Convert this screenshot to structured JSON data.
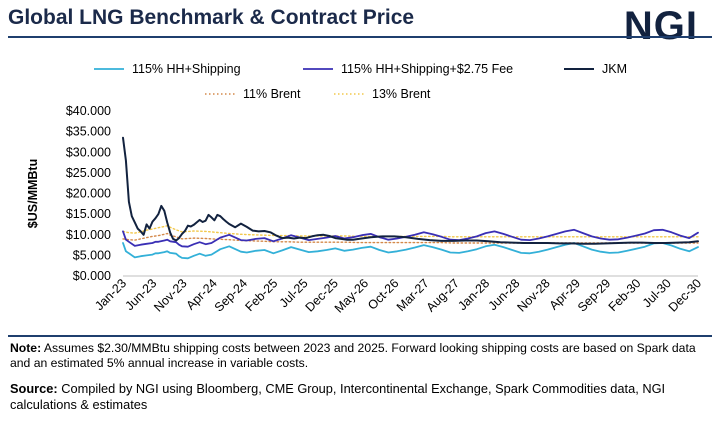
{
  "header": {
    "title": "Global LNG Benchmark & Contract Price",
    "logo": "NGI"
  },
  "note": {
    "label": "Note:",
    "text": " Assumes $2.30/MMBtu shipping costs between 2023 and 2025. Forward looking shipping costs are based on Spark data and an estimated 5% annual increase in variable costs."
  },
  "source": {
    "label": "Source:",
    "text": " Compiled by NGI using Bloomberg, CME Group, Intercontinental Exchange, Spark Commodities data, NGI calculations & estimates"
  },
  "colors": {
    "title": "#1b2a4a",
    "rule": "#1f3f6e",
    "hh": "#33b0d8",
    "fee": "#3a2fb5",
    "jkm": "#12223f",
    "b11": "#d4894a",
    "b13": "#f2c84b"
  },
  "chart_data": {
    "type": "line",
    "ylabel": "$US/MMBtu",
    "ylim": [
      0,
      40
    ],
    "yticks": [
      0,
      5,
      10,
      15,
      20,
      25,
      30,
      35,
      40
    ],
    "ytick_labels": [
      "$0.000",
      "$5.000",
      "$10.000",
      "$15.000",
      "$20.000",
      "$25.000",
      "$30.000",
      "$35.000",
      "$40.000"
    ],
    "xtick_labels": [
      "Jan-23",
      "Jun-23",
      "Nov-23",
      "Apr-24",
      "Sep-24",
      "Feb-25",
      "Jul-25",
      "Dec-25",
      "May-26",
      "Oct-26",
      "Mar-27",
      "Aug-27",
      "Jan-28",
      "Jun-28",
      "Nov-28",
      "Apr-29",
      "Sep-29",
      "Feb-30",
      "Jul-30",
      "Dec-30"
    ],
    "series": [
      {
        "name": "115% HH+Shipping",
        "color": "#33b0d8",
        "style": "solid",
        "width": 1.8,
        "x": [
          0,
          1,
          2,
          4,
          6,
          8,
          10,
          11,
          12,
          14,
          15,
          16,
          18,
          19,
          20,
          22,
          24,
          26,
          28,
          30,
          33,
          36,
          40,
          42,
          45,
          48,
          51,
          54,
          57,
          60,
          63,
          66,
          69,
          72,
          75,
          78,
          81,
          84,
          87,
          90,
          93,
          96,
          99,
          102,
          105,
          108,
          111,
          114,
          117,
          120,
          123,
          126,
          129,
          132,
          135,
          138,
          141,
          144,
          147,
          150,
          153,
          156,
          159,
          162,
          165,
          168,
          171,
          174,
          177,
          180,
          183,
          186,
          189,
          192,
          195
        ],
        "y": [
          8.0,
          6.0,
          5.5,
          4.5,
          4.8,
          5.0,
          5.2,
          5.5,
          5.5,
          5.8,
          6.0,
          5.6,
          5.4,
          4.8,
          4.4,
          4.3,
          4.9,
          5.4,
          4.9,
          5.2,
          6.5,
          7.2,
          5.9,
          5.7,
          6.1,
          6.3,
          5.5,
          6.2,
          7.0,
          6.4,
          5.8,
          6.0,
          6.3,
          6.7,
          6.1,
          6.4,
          6.8,
          7.1,
          6.3,
          5.7,
          6.0,
          6.4,
          6.9,
          7.5,
          7.0,
          6.4,
          5.7,
          5.6,
          6.0,
          6.5,
          7.2,
          7.6,
          7.0,
          6.3,
          5.6,
          5.5,
          5.9,
          6.4,
          7.0,
          7.6,
          8.0,
          7.2,
          6.4,
          5.9,
          5.6,
          5.7,
          6.1,
          6.6,
          7.1,
          7.9,
          8.0,
          7.4,
          6.6,
          6.0,
          7.0
        ]
      },
      {
        "name": "115% HH+Shipping+$2.75 Fee",
        "color": "#3a2fb5",
        "style": "solid",
        "width": 1.8,
        "x": [
          0,
          1,
          2,
          4,
          6,
          8,
          10,
          11,
          12,
          14,
          15,
          16,
          18,
          19,
          20,
          22,
          24,
          26,
          28,
          30,
          33,
          36,
          40,
          42,
          45,
          48,
          51,
          54,
          57,
          60,
          63,
          66,
          69,
          72,
          75,
          78,
          81,
          84,
          87,
          90,
          93,
          96,
          99,
          102,
          105,
          108,
          111,
          114,
          117,
          120,
          123,
          126,
          129,
          132,
          135,
          138,
          141,
          144,
          147,
          150,
          153,
          156,
          159,
          162,
          165,
          168,
          171,
          174,
          177,
          180,
          183,
          186,
          189,
          192,
          195
        ],
        "y": [
          10.8,
          8.8,
          8.3,
          7.3,
          7.6,
          7.8,
          8.0,
          8.3,
          8.3,
          8.6,
          8.8,
          8.4,
          8.2,
          7.6,
          7.2,
          7.1,
          7.7,
          8.2,
          7.7,
          8.0,
          9.3,
          10.0,
          8.7,
          8.6,
          9.0,
          9.2,
          8.4,
          9.1,
          9.9,
          9.3,
          8.7,
          9.0,
          9.3,
          9.7,
          9.1,
          9.4,
          9.9,
          10.2,
          9.4,
          8.8,
          9.1,
          9.5,
          10.0,
          10.6,
          10.1,
          9.5,
          8.8,
          8.7,
          9.1,
          9.6,
          10.4,
          10.8,
          10.2,
          9.5,
          8.8,
          8.7,
          9.1,
          9.6,
          10.2,
          10.8,
          11.2,
          10.4,
          9.6,
          9.1,
          8.8,
          8.9,
          9.3,
          9.8,
          10.3,
          11.1,
          11.2,
          10.6,
          9.8,
          9.2,
          10.5
        ]
      },
      {
        "name": "JKM",
        "color": "#12223f",
        "style": "solid",
        "width": 2.0,
        "x": [
          0,
          1,
          2,
          3,
          4,
          5,
          6,
          7,
          8,
          9,
          10,
          11,
          12,
          13,
          14,
          15,
          16,
          17,
          18,
          19,
          20,
          21,
          22,
          23,
          24,
          25,
          26,
          27,
          28,
          29,
          30,
          31,
          32,
          33,
          34,
          35,
          36,
          38,
          40,
          42,
          44,
          46,
          48,
          50,
          52,
          54,
          56,
          58,
          60,
          62,
          64,
          66,
          68,
          70,
          72,
          74,
          76,
          78,
          80,
          84,
          88,
          92,
          96,
          100,
          104,
          108,
          112,
          116,
          120,
          124,
          128,
          132,
          136,
          140,
          144,
          148,
          152,
          156,
          160,
          164,
          168,
          172,
          176,
          180,
          184,
          188,
          192,
          195
        ],
        "y": [
          33.5,
          28.0,
          18.0,
          14.5,
          13.0,
          11.5,
          10.8,
          10.0,
          12.5,
          11.5,
          13.2,
          14.0,
          15.0,
          17.0,
          15.8,
          13.0,
          10.5,
          9.0,
          8.6,
          9.2,
          10.2,
          10.9,
          12.2,
          12.0,
          12.4,
          13.0,
          13.6,
          13.1,
          13.4,
          14.8,
          14.2,
          13.5,
          14.8,
          14.5,
          13.8,
          13.2,
          12.6,
          11.8,
          12.7,
          11.9,
          11.0,
          10.8,
          10.9,
          10.6,
          9.8,
          9.2,
          9.3,
          9.1,
          9.3,
          9.2,
          9.6,
          9.9,
          10.0,
          9.7,
          9.2,
          9.0,
          8.8,
          8.8,
          9.0,
          9.4,
          9.6,
          9.6,
          9.4,
          9.0,
          8.7,
          8.5,
          8.5,
          8.6,
          8.6,
          8.4,
          8.2,
          8.1,
          8.0,
          8.0,
          8.0,
          7.9,
          7.9,
          7.8,
          7.8,
          7.9,
          8.0,
          8.1,
          8.1,
          8.0,
          8.0,
          8.1,
          8.2,
          8.4
        ]
      },
      {
        "name": "11% Brent",
        "color": "#d4894a",
        "style": "dotted",
        "width": 1.4,
        "x": [
          0,
          2,
          4,
          6,
          8,
          10,
          12,
          14,
          15,
          16,
          18,
          20,
          24,
          28,
          30,
          33,
          36,
          40,
          44,
          48,
          52,
          56,
          60,
          64,
          68,
          72,
          76,
          80,
          84,
          88,
          92,
          96,
          100,
          104,
          108,
          112,
          116,
          120,
          124,
          128,
          132,
          136,
          140,
          144,
          148,
          152,
          156,
          160,
          164,
          168,
          172,
          176,
          180,
          184,
          188,
          192,
          195
        ],
        "y": [
          9.0,
          8.8,
          8.7,
          9.0,
          9.3,
          9.6,
          9.8,
          10.1,
          10.3,
          9.9,
          9.5,
          9.0,
          9.2,
          9.1,
          9.0,
          8.9,
          8.8,
          8.6,
          8.5,
          8.4,
          8.3,
          8.3,
          8.2,
          8.2,
          8.2,
          8.2,
          8.2,
          8.1,
          8.1,
          8.1,
          8.1,
          8.1,
          8.1,
          8.1,
          8.1,
          8.0,
          8.0,
          8.0,
          8.0,
          8.0,
          8.0,
          8.0,
          8.0,
          8.0,
          8.0,
          8.0,
          8.0,
          8.0,
          8.0,
          8.0,
          8.0,
          8.0,
          8.0,
          8.0,
          8.0,
          8.0,
          8.0
        ]
      },
      {
        "name": "13% Brent",
        "color": "#f2c84b",
        "style": "dotted",
        "width": 1.4,
        "x": [
          0,
          2,
          4,
          6,
          8,
          10,
          12,
          14,
          15,
          16,
          18,
          20,
          24,
          28,
          30,
          33,
          36,
          40,
          44,
          48,
          52,
          56,
          60,
          64,
          68,
          72,
          76,
          80,
          84,
          88,
          92,
          96,
          100,
          104,
          108,
          112,
          116,
          120,
          124,
          128,
          132,
          136,
          140,
          144,
          148,
          152,
          156,
          160,
          164,
          168,
          172,
          176,
          180,
          184,
          188,
          192,
          195
        ],
        "y": [
          10.8,
          10.5,
          10.4,
          10.7,
          11.1,
          11.4,
          11.7,
          12.0,
          12.2,
          11.8,
          11.2,
          10.7,
          10.9,
          10.8,
          10.7,
          10.5,
          10.3,
          10.1,
          10.0,
          9.9,
          9.8,
          9.8,
          9.7,
          9.7,
          9.7,
          9.7,
          9.7,
          9.6,
          9.6,
          9.6,
          9.6,
          9.6,
          9.6,
          9.6,
          9.6,
          9.5,
          9.5,
          9.5,
          9.5,
          9.5,
          9.5,
          9.5,
          9.5,
          9.5,
          9.5,
          9.5,
          9.5,
          9.5,
          9.5,
          9.5,
          9.5,
          9.5,
          9.5,
          9.5,
          9.5,
          9.5,
          9.5
        ]
      }
    ],
    "legend_position": "top"
  }
}
